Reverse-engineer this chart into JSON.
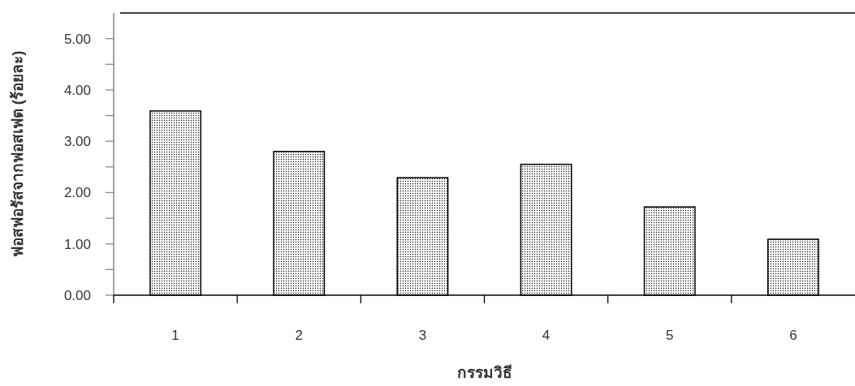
{
  "chart_data": {
    "type": "bar",
    "xlabel": "กรรมวิธี",
    "ylabel": "ฟอสฟอรัสจากฟอสเฟต (ร้อยละ)",
    "categories": [
      "1",
      "2",
      "3",
      "4",
      "5",
      "6"
    ],
    "values": [
      3.59,
      2.8,
      2.29,
      2.55,
      1.72,
      1.09
    ],
    "ylim": [
      0,
      5.5
    ],
    "yticks": [
      {
        "value": 0,
        "label": "0.00"
      },
      {
        "value": 0.5,
        "label": null
      },
      {
        "value": 1,
        "label": "1.00"
      },
      {
        "value": 1.5,
        "label": null
      },
      {
        "value": 2,
        "label": "2.00"
      },
      {
        "value": 2.5,
        "label": null
      },
      {
        "value": 3,
        "label": "3.00"
      },
      {
        "value": 3.5,
        "label": null
      },
      {
        "value": 4,
        "label": "4.00"
      },
      {
        "value": 4.5,
        "label": null
      },
      {
        "value": 5,
        "label": "5.00"
      }
    ],
    "grid": false
  }
}
